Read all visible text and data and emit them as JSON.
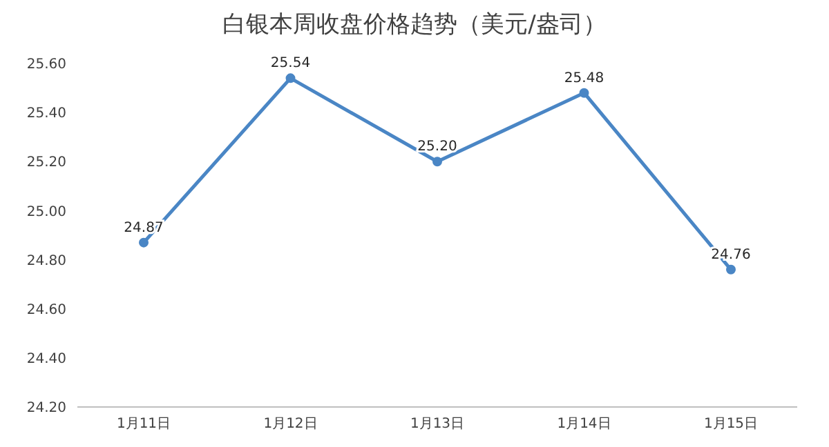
{
  "chart_data": {
    "type": "line",
    "title": "白银本周收盘价格趋势（美元/盎司）",
    "categories": [
      "1月11日",
      "1月12日",
      "1月13日",
      "1月14日",
      "1月15日"
    ],
    "series": [
      {
        "color": "#4a86c5",
        "values": [
          24.87,
          25.54,
          25.2,
          25.48,
          24.76
        ],
        "value_labels": [
          "24.87",
          "25.54",
          "25.20",
          "25.48",
          "24.76"
        ]
      }
    ],
    "ylim": [
      24.2,
      25.6
    ],
    "yticks": [
      {
        "value": 24.2,
        "label": "24.20"
      },
      {
        "value": 24.4,
        "label": "24.40"
      },
      {
        "value": 24.6,
        "label": "24.60"
      },
      {
        "value": 24.8,
        "label": "24.80"
      },
      {
        "value": 25,
        "label": "25.00"
      },
      {
        "value": 25.2,
        "label": "25.20"
      },
      {
        "value": 25.4,
        "label": "25.40"
      },
      {
        "value": 25.6,
        "label": "25.60"
      }
    ],
    "grid": false,
    "legend": false,
    "marker": "circle",
    "line_style": "solid"
  }
}
